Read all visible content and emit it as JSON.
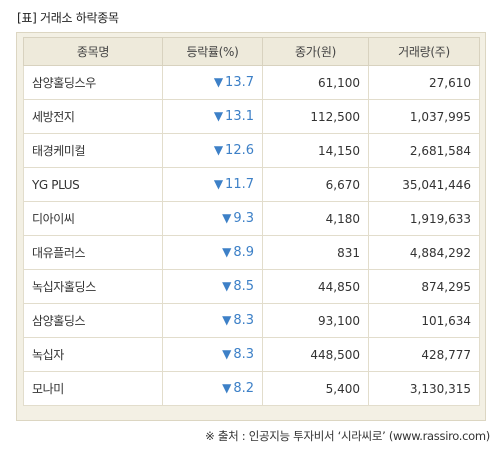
{
  "title": "[표] 거래소 하락종목",
  "table": {
    "headers": [
      "종목명",
      "등락률(%)",
      "종가(원)",
      "거래량(주)"
    ],
    "rows": [
      {
        "name": "삼양홀딩스우",
        "rate": "13.7",
        "close": "61,100",
        "volume": "27,610"
      },
      {
        "name": "세방전지",
        "rate": "13.1",
        "close": "112,500",
        "volume": "1,037,995"
      },
      {
        "name": "태경케미컬",
        "rate": "12.6",
        "close": "14,150",
        "volume": "2,681,584"
      },
      {
        "name": "YG PLUS",
        "rate": "11.7",
        "close": "6,670",
        "volume": "35,041,446"
      },
      {
        "name": "디아이씨",
        "rate": "9.3",
        "close": "4,180",
        "volume": "1,919,633"
      },
      {
        "name": "대유플러스",
        "rate": "8.9",
        "close": "831",
        "volume": "4,884,292"
      },
      {
        "name": "녹십자홀딩스",
        "rate": "8.5",
        "close": "44,850",
        "volume": "874,295"
      },
      {
        "name": "삼양홀딩스",
        "rate": "8.3",
        "close": "93,100",
        "volume": "101,634"
      },
      {
        "name": "녹십자",
        "rate": "8.3",
        "close": "448,500",
        "volume": "428,777"
      },
      {
        "name": "모나미",
        "rate": "8.2",
        "close": "5,400",
        "volume": "3,130,315"
      }
    ]
  },
  "down_arrow": "▼",
  "source": "※ 출처 : 인공지능 투자비서 ‘시라씨로’ (www.rassiro.com)",
  "colors": {
    "down": "#3d80c7",
    "header_bg": "#eeeadb",
    "frame_bg": "#f3f0e4"
  }
}
